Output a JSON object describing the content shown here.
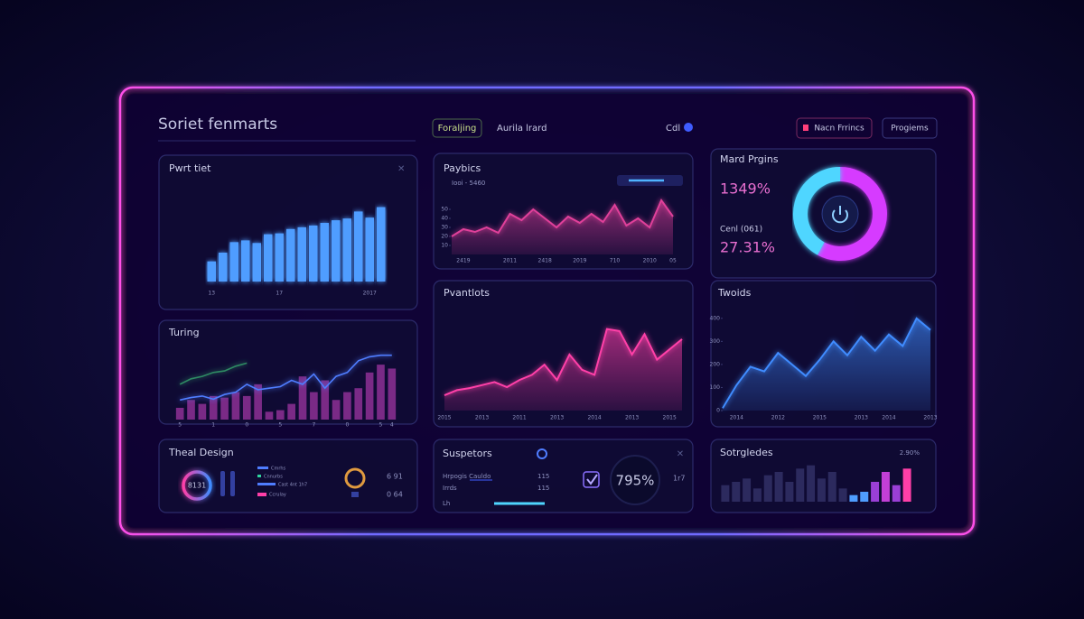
{
  "header": {
    "title": "Soriet fenmarts",
    "tabs": [
      "Foraljing",
      "Aurila lrard",
      "Cdl"
    ],
    "buttons": [
      "Nacn Frrincs",
      "Progiems"
    ]
  },
  "panels": {
    "theal": {
      "title": "Theal Design",
      "gauge": "8131",
      "legend": [
        "Cmrhs",
        "Cnnurbs",
        "Cast 4nt 1h7",
        "Ccrulay"
      ],
      "stats": [
        "6 91",
        "0 64"
      ]
    },
    "suspetors": {
      "title": "Suspetors",
      "value": "795%",
      "rows": [
        [
          "Hrpogis Cauldo",
          "115"
        ],
        [
          "Irrds",
          "115"
        ],
        [
          "Lh"
        ]
      ],
      "side": "1r7"
    }
  },
  "chart_data": [
    {
      "type": "bar",
      "title": "Pwrt tiet",
      "color": "#4f9dff",
      "categories": [
        "13",
        null,
        null,
        null,
        null,
        null,
        "17",
        null,
        null,
        null,
        null,
        null,
        null,
        null,
        "2017",
        null
      ],
      "values": [
        23,
        33,
        45,
        47,
        44,
        54,
        55,
        60,
        62,
        64,
        67,
        70,
        72,
        80,
        73,
        85
      ],
      "ylim": [
        0,
        100
      ]
    },
    {
      "type": "area",
      "title": "Paybics",
      "subtitle": "Iooi - 5460",
      "color": "#e0409a",
      "categories": [
        null,
        "2419",
        null,
        null,
        null,
        "2011",
        null,
        null,
        "2418",
        null,
        null,
        "2019",
        null,
        null,
        "710",
        null,
        null,
        "2010",
        null,
        "05"
      ],
      "values": [
        20,
        28,
        25,
        30,
        24,
        45,
        38,
        50,
        40,
        30,
        42,
        35,
        45,
        36,
        55,
        32,
        40,
        30,
        60,
        42
      ],
      "ylim": [
        0,
        70
      ],
      "yticks": [
        10,
        20,
        30,
        40,
        50
      ]
    },
    {
      "type": "donut",
      "title": "Mard Prgins",
      "values": [
        58,
        42
      ],
      "colors": [
        "#d63bff",
        "#4fd6ff"
      ],
      "stats": [
        "1349%",
        "Cenl (061)",
        "27.31%"
      ]
    },
    {
      "type": "combo",
      "title": "Turing",
      "categories": [
        "5",
        null,
        null,
        "1",
        null,
        null,
        "0",
        null,
        null,
        "5",
        null,
        null,
        "7",
        null,
        null,
        "0",
        null,
        null,
        "5",
        "4"
      ],
      "bars": {
        "color": "#7a2a86",
        "values": [
          15,
          25,
          20,
          30,
          28,
          35,
          30,
          45,
          10,
          12,
          20,
          55,
          35,
          50,
          25,
          35,
          40,
          60,
          70,
          65
        ]
      },
      "lines": [
        {
          "color": "#4f7dff",
          "values": [
            25,
            28,
            30,
            26,
            32,
            35,
            45,
            38,
            40,
            42,
            50,
            45,
            58,
            40,
            55,
            60,
            75,
            80,
            82,
            82
          ]
        },
        {
          "color": "#2f8a63",
          "values": [
            45,
            52,
            55,
            60,
            62,
            68,
            72,
            null,
            null,
            null,
            null,
            null,
            null,
            null,
            null,
            null,
            null,
            null,
            null,
            null
          ]
        }
      ],
      "ylim": [
        0,
        100
      ]
    },
    {
      "type": "area",
      "title": "Pvantlots",
      "color": "#ff3fa8",
      "categories": [
        "2015",
        null,
        null,
        "2013",
        null,
        null,
        "2011",
        null,
        null,
        "2013",
        null,
        null,
        "2014",
        null,
        null,
        "2013",
        null,
        null,
        "2015",
        null
      ],
      "values": [
        15,
        20,
        22,
        25,
        28,
        23,
        30,
        35,
        45,
        30,
        55,
        40,
        35,
        80,
        78,
        55,
        75,
        50,
        60,
        70
      ],
      "ylim": [
        0,
        100
      ]
    },
    {
      "type": "area",
      "title": "Twoids",
      "color": "#3f8cff",
      "categories": [
        null,
        "2014",
        null,
        null,
        "2012",
        null,
        null,
        "2015",
        null,
        null,
        "2013",
        null,
        "2014",
        null,
        null,
        "2013"
      ],
      "values": [
        10,
        110,
        190,
        170,
        250,
        200,
        150,
        220,
        300,
        240,
        320,
        260,
        330,
        280,
        400,
        350
      ],
      "ylim": [
        0,
        450
      ],
      "yticks": [
        0,
        100,
        200,
        300,
        400
      ]
    },
    {
      "type": "bar",
      "title": "Sotrgledes",
      "subtitle": "2.90%",
      "categories": [
        null,
        null,
        null,
        null,
        null,
        null,
        null,
        null,
        null,
        null,
        null,
        null,
        null,
        null,
        null,
        null,
        null,
        null
      ],
      "values": [
        25,
        30,
        35,
        20,
        40,
        45,
        30,
        50,
        55,
        35,
        45,
        20,
        10,
        15,
        30,
        45,
        25,
        50
      ],
      "colors": [
        "#2c2a5e",
        "#2c2a5e",
        "#2c2a5e",
        "#2c2a5e",
        "#2c2a5e",
        "#2c2a5e",
        "#2c2a5e",
        "#2c2a5e",
        "#2c2a5e",
        "#2c2a5e",
        "#2c2a5e",
        "#2c2a5e",
        "#4f9dff",
        "#4f9dff",
        "#9a3fd6",
        "#c23fd6",
        "#9a3fd6",
        "#ff3fa8"
      ],
      "ylim": [
        0,
        60
      ]
    }
  ]
}
